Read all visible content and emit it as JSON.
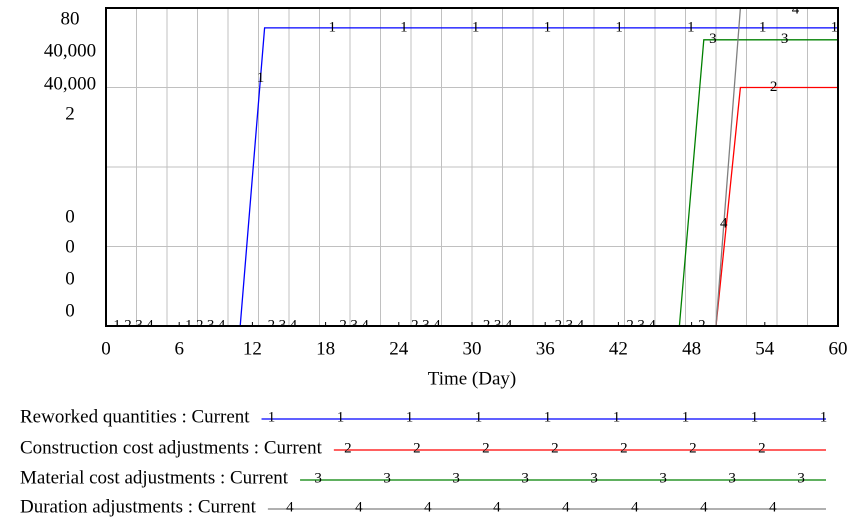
{
  "chart_data": {
    "type": "line",
    "x_label": "Time (Day)",
    "x": [
      0,
      11,
      13,
      47,
      49,
      50,
      52,
      60
    ],
    "xlim": [
      0,
      60
    ],
    "xticks": [
      0,
      6,
      12,
      18,
      24,
      30,
      36,
      42,
      48,
      54,
      60
    ],
    "series": [
      {
        "name": "Reworked quantities : Current",
        "marker": "1",
        "color": "#0000ff",
        "ylim": [
          0,
          80
        ],
        "yticks": [
          0,
          80
        ],
        "values": [
          0,
          0,
          75,
          75,
          75,
          75,
          75,
          75
        ]
      },
      {
        "name": "Construction cost adjustments : Current",
        "marker": "2",
        "color": "#ff0000",
        "ylim": [
          0,
          40000
        ],
        "yticks": [
          0,
          {
            "value": 40000,
            "label": "40,000"
          }
        ],
        "values": [
          0,
          0,
          0,
          0,
          0,
          0,
          30000,
          30000
        ]
      },
      {
        "name": "Material cost adjustments : Current",
        "marker": "3",
        "color": "#008000",
        "ylim": [
          0,
          40000
        ],
        "yticks": [
          0,
          {
            "value": 40000,
            "label": "40,000"
          }
        ],
        "values": [
          0,
          0,
          0,
          0,
          36000,
          36000,
          36000,
          36000
        ]
      },
      {
        "name": "Duration adjustments : Current",
        "marker": "4",
        "color": "#808080",
        "ylim": [
          0,
          2
        ],
        "yticks": [
          0,
          2
        ],
        "values": [
          0,
          0,
          0,
          0,
          0,
          0,
          2,
          2
        ]
      }
    ]
  }
}
